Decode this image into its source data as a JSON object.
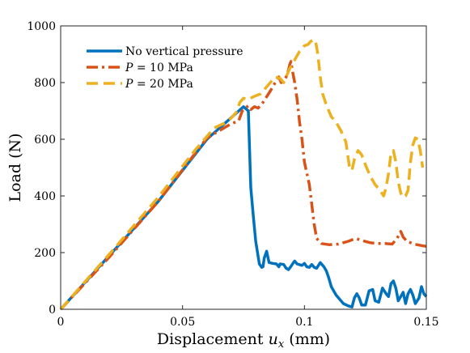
{
  "chart_data": {
    "type": "line",
    "xlabel": "Displacement u_x (mm)",
    "xlabel_parts": {
      "pre": "Displacement ",
      "var": "u",
      "sub": "x",
      "post": " (mm)"
    },
    "ylabel": "Load (N)",
    "xlim": [
      0,
      0.15
    ],
    "ylim": [
      0,
      1000
    ],
    "xticks": [
      0,
      0.05,
      0.1,
      0.15
    ],
    "xtick_labels": [
      "0",
      "0.05",
      "0.1",
      "0.15"
    ],
    "yticks": [
      0,
      200,
      400,
      600,
      800,
      1000
    ],
    "ytick_labels": [
      "0",
      "200",
      "400",
      "600",
      "800",
      "1000"
    ],
    "grid": false,
    "legend_position": "top-left",
    "series": [
      {
        "name": "No vertical pressure",
        "name_parts": {
          "var": "",
          "text": "No vertical pressure"
        },
        "color": "#0072BD",
        "style": "solid",
        "points": [
          [
            0,
            0
          ],
          [
            0.02,
            190
          ],
          [
            0.04,
            380
          ],
          [
            0.06,
            600
          ],
          [
            0.075,
            715
          ],
          [
            0.077,
            700
          ],
          [
            0.078,
            430
          ],
          [
            0.079,
            330
          ],
          [
            0.08,
            240
          ],
          [
            0.0815,
            160
          ],
          [
            0.0825,
            148
          ],
          [
            0.083,
            150
          ],
          [
            0.0835,
            180
          ],
          [
            0.0845,
            205
          ],
          [
            0.0855,
            165
          ],
          [
            0.087,
            162
          ],
          [
            0.0885,
            160
          ],
          [
            0.0895,
            150
          ],
          [
            0.09,
            160
          ],
          [
            0.0915,
            158
          ],
          [
            0.0925,
            145
          ],
          [
            0.0935,
            140
          ],
          [
            0.0945,
            152
          ],
          [
            0.0955,
            165
          ],
          [
            0.096,
            170
          ],
          [
            0.097,
            160
          ],
          [
            0.099,
            155
          ],
          [
            0.1,
            162
          ],
          [
            0.101,
            150
          ],
          [
            0.102,
            148
          ],
          [
            0.103,
            158
          ],
          [
            0.104,
            148
          ],
          [
            0.105,
            145
          ],
          [
            0.1065,
            165
          ],
          [
            0.108,
            150
          ],
          [
            0.109,
            135
          ],
          [
            0.11,
            110
          ],
          [
            0.111,
            80
          ],
          [
            0.113,
            50
          ],
          [
            0.116,
            20
          ],
          [
            0.118,
            12
          ],
          [
            0.1195,
            8
          ],
          [
            0.1205,
            40
          ],
          [
            0.1215,
            55
          ],
          [
            0.1225,
            40
          ],
          [
            0.1235,
            15
          ],
          [
            0.125,
            15
          ],
          [
            0.1265,
            65
          ],
          [
            0.128,
            70
          ],
          [
            0.129,
            30
          ],
          [
            0.1305,
            25
          ],
          [
            0.132,
            75
          ],
          [
            0.1335,
            55
          ],
          [
            0.1345,
            45
          ],
          [
            0.1355,
            90
          ],
          [
            0.1365,
            100
          ],
          [
            0.1375,
            75
          ],
          [
            0.1385,
            30
          ],
          [
            0.1395,
            45
          ],
          [
            0.1405,
            60
          ],
          [
            0.1415,
            20
          ],
          [
            0.1425,
            55
          ],
          [
            0.1435,
            70
          ],
          [
            0.1445,
            50
          ],
          [
            0.1455,
            20
          ],
          [
            0.147,
            40
          ],
          [
            0.148,
            80
          ],
          [
            0.149,
            55
          ],
          [
            0.15,
            45
          ]
        ]
      },
      {
        "name": "P = 10 MPa",
        "name_parts": {
          "var": "P",
          "text": " = 10 MPa"
        },
        "color": "#D95319",
        "style": "dashdot",
        "points": [
          [
            0,
            0
          ],
          [
            0.02,
            185
          ],
          [
            0.04,
            380
          ],
          [
            0.06,
            605
          ],
          [
            0.07,
            655
          ],
          [
            0.073,
            665
          ],
          [
            0.0745,
            700
          ],
          [
            0.076,
            712
          ],
          [
            0.077,
            718
          ],
          [
            0.078,
            705
          ],
          [
            0.0795,
            715
          ],
          [
            0.081,
            710
          ],
          [
            0.083,
            730
          ],
          [
            0.086,
            770
          ],
          [
            0.088,
            800
          ],
          [
            0.0895,
            820
          ],
          [
            0.0905,
            800
          ],
          [
            0.0915,
            805
          ],
          [
            0.0925,
            820
          ],
          [
            0.0935,
            845
          ],
          [
            0.094,
            865
          ],
          [
            0.0945,
            875
          ],
          [
            0.095,
            845
          ],
          [
            0.096,
            800
          ],
          [
            0.097,
            740
          ],
          [
            0.098,
            660
          ],
          [
            0.099,
            600
          ],
          [
            0.1,
            520
          ],
          [
            0.101,
            480
          ],
          [
            0.102,
            440
          ],
          [
            0.103,
            370
          ],
          [
            0.104,
            300
          ],
          [
            0.105,
            250
          ],
          [
            0.107,
            232
          ],
          [
            0.11,
            228
          ],
          [
            0.114,
            230
          ],
          [
            0.118,
            240
          ],
          [
            0.121,
            250
          ],
          [
            0.124,
            242
          ],
          [
            0.127,
            235
          ],
          [
            0.13,
            232
          ],
          [
            0.133,
            232
          ],
          [
            0.136,
            230
          ],
          [
            0.138,
            250
          ],
          [
            0.1395,
            275
          ],
          [
            0.1405,
            255
          ],
          [
            0.142,
            240
          ],
          [
            0.145,
            230
          ],
          [
            0.148,
            225
          ],
          [
            0.15,
            222
          ]
        ]
      },
      {
        "name": "P = 20 MPa",
        "name_parts": {
          "var": "P",
          "text": " = 20 MPa"
        },
        "color": "#EDB120",
        "style": "dashed",
        "points": [
          [
            0,
            0
          ],
          [
            0.02,
            195
          ],
          [
            0.04,
            395
          ],
          [
            0.055,
            560
          ],
          [
            0.063,
            640
          ],
          [
            0.068,
            660
          ],
          [
            0.07,
            675
          ],
          [
            0.072,
            695
          ],
          [
            0.0735,
            730
          ],
          [
            0.075,
            745
          ],
          [
            0.077,
            740
          ],
          [
            0.079,
            750
          ],
          [
            0.082,
            760
          ],
          [
            0.085,
            790
          ],
          [
            0.088,
            820
          ],
          [
            0.09,
            815
          ],
          [
            0.0915,
            800
          ],
          [
            0.0925,
            820
          ],
          [
            0.094,
            850
          ],
          [
            0.096,
            880
          ],
          [
            0.098,
            910
          ],
          [
            0.1,
            930
          ],
          [
            0.1015,
            935
          ],
          [
            0.1025,
            945
          ],
          [
            0.1035,
            950
          ],
          [
            0.1045,
            950
          ],
          [
            0.1055,
            900
          ],
          [
            0.1065,
            820
          ],
          [
            0.1075,
            760
          ],
          [
            0.109,
            720
          ],
          [
            0.111,
            680
          ],
          [
            0.113,
            660
          ],
          [
            0.115,
            630
          ],
          [
            0.117,
            590
          ],
          [
            0.1185,
            500
          ],
          [
            0.1195,
            490
          ],
          [
            0.1205,
            530
          ],
          [
            0.122,
            560
          ],
          [
            0.1235,
            545
          ],
          [
            0.125,
            510
          ],
          [
            0.127,
            470
          ],
          [
            0.129,
            440
          ],
          [
            0.131,
            420
          ],
          [
            0.1325,
            400
          ],
          [
            0.1335,
            430
          ],
          [
            0.1345,
            480
          ],
          [
            0.1355,
            550
          ],
          [
            0.1365,
            560
          ],
          [
            0.1375,
            520
          ],
          [
            0.1385,
            450
          ],
          [
            0.1395,
            410
          ],
          [
            0.1405,
            395
          ],
          [
            0.1415,
            400
          ],
          [
            0.1425,
            420
          ],
          [
            0.1435,
            520
          ],
          [
            0.1445,
            580
          ],
          [
            0.1455,
            605
          ],
          [
            0.1465,
            600
          ],
          [
            0.1475,
            560
          ],
          [
            0.1485,
            500
          ]
        ]
      }
    ]
  }
}
